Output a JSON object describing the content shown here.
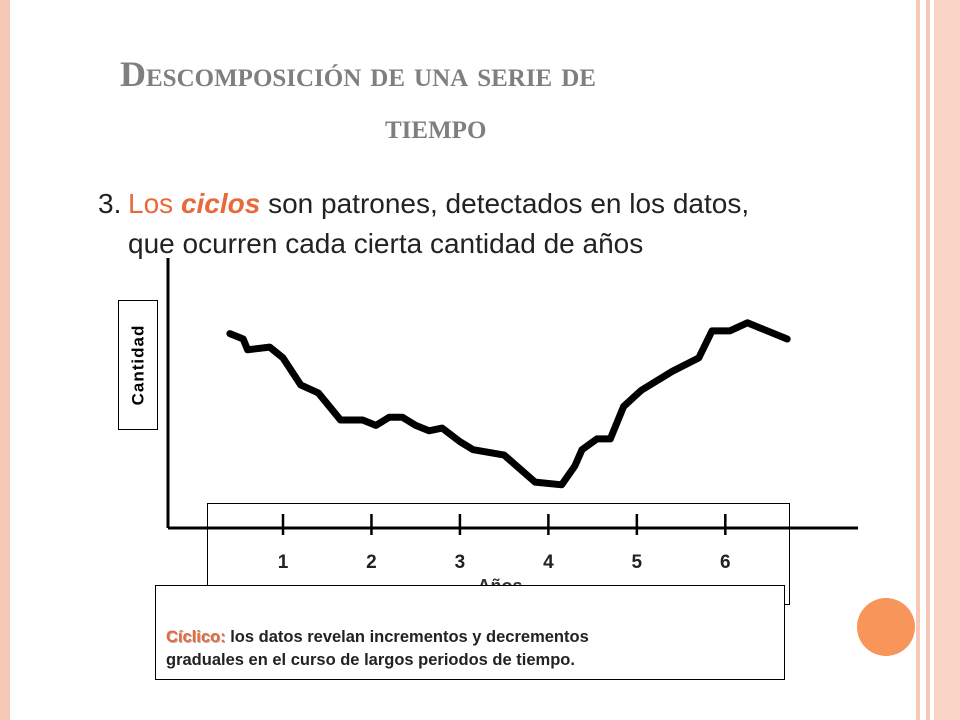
{
  "slide": {
    "title_line1": "Descomposición de una serie de",
    "title_line2": "tiempo",
    "item_number": "3.",
    "body_los": "Los",
    "body_ciclos": "ciclos",
    "body_rest_line1": "son patrones, detectados en los datos,",
    "body_line2": "que ocurren cada cierta cantidad de años"
  },
  "chart_data": {
    "type": "line",
    "title": "",
    "xlabel": "Años",
    "ylabel": "Cantidad",
    "categories": [
      "1",
      "2",
      "3",
      "4",
      "5",
      "6"
    ],
    "x": [
      0.4,
      0.55,
      0.6,
      0.85,
      1.0,
      1.2,
      1.4,
      1.65,
      1.9,
      2.05,
      2.2,
      2.35,
      2.5,
      2.65,
      2.8,
      3.0,
      3.15,
      3.5,
      3.85,
      4.15,
      4.3,
      4.38,
      4.55,
      4.7,
      4.85,
      5.05,
      5.4,
      5.7,
      5.85,
      6.05,
      6.25,
      6.4,
      6.7
    ],
    "values": [
      72,
      70,
      66,
      67,
      63,
      53,
      50,
      40,
      40,
      38,
      41,
      41,
      38,
      36,
      37,
      32,
      29,
      27,
      17,
      16,
      23,
      29,
      33,
      33,
      45,
      51,
      58,
      63,
      73,
      73,
      76,
      74,
      70
    ],
    "ylim": [
      0,
      100
    ],
    "xlim": [
      -0.3,
      7.5
    ],
    "color": "#000000"
  },
  "definition": {
    "term": "Cíclico:",
    "text_line1": "los datos revelan incrementos y decrementos",
    "text_line2": "graduales en el curso de largos periodos de tiempo."
  },
  "colors": {
    "accent": "#e8693a",
    "title": "#7f7f7f",
    "circle": "#f7955a",
    "border": "#f7c8b6"
  }
}
